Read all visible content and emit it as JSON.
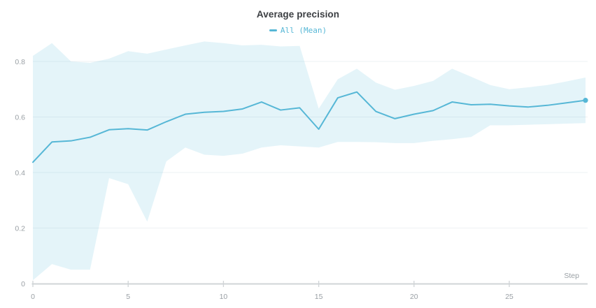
{
  "chart_data": {
    "type": "line",
    "title": "Average precision",
    "xlabel": "Step",
    "ylabel": "",
    "xlim": [
      0,
      29
    ],
    "ylim": [
      0,
      0.8
    ],
    "grid": "horizontal",
    "legend_position": "top-center",
    "x_ticks": [
      0,
      5,
      10,
      15,
      20,
      25
    ],
    "x_tick_labels": [
      "0",
      "5",
      "10",
      "15",
      "20",
      "25"
    ],
    "y_ticks": [
      0,
      0.2,
      0.4,
      0.6,
      0.8
    ],
    "y_tick_labels": [
      "0",
      "0.2",
      "0.4",
      "0.6",
      "0.8"
    ],
    "x": [
      0,
      1,
      2,
      3,
      4,
      5,
      6,
      7,
      8,
      9,
      10,
      11,
      12,
      13,
      14,
      15,
      16,
      17,
      18,
      19,
      20,
      21,
      22,
      23,
      24,
      25,
      26,
      27,
      28,
      29
    ],
    "series": [
      {
        "name": "All (Mean)",
        "kind": "line",
        "values": [
          0.437,
          0.51,
          0.514,
          0.527,
          0.554,
          0.558,
          0.553,
          0.583,
          0.61,
          0.617,
          0.62,
          0.629,
          0.654,
          0.625,
          0.633,
          0.556,
          0.669,
          0.69,
          0.62,
          0.594,
          0.61,
          0.623,
          0.654,
          0.644,
          0.646,
          0.64,
          0.636,
          0.642,
          0.651,
          0.66
        ],
        "end_marker": true
      },
      {
        "name": "All (min/max band)",
        "kind": "band",
        "upper": [
          0.82,
          0.866,
          0.8,
          0.795,
          0.81,
          0.837,
          0.828,
          0.843,
          0.858,
          0.872,
          0.866,
          0.858,
          0.86,
          0.854,
          0.856,
          0.63,
          0.736,
          0.774,
          0.724,
          0.698,
          0.712,
          0.73,
          0.774,
          0.745,
          0.715,
          0.7,
          0.707,
          0.715,
          0.728,
          0.742
        ],
        "lower": [
          0.012,
          0.07,
          0.05,
          0.05,
          0.38,
          0.358,
          0.223,
          0.44,
          0.49,
          0.464,
          0.46,
          0.468,
          0.49,
          0.498,
          0.494,
          0.49,
          0.51,
          0.51,
          0.509,
          0.506,
          0.506,
          0.514,
          0.52,
          0.528,
          0.57,
          0.57,
          0.572,
          0.574,
          0.576,
          0.578
        ]
      }
    ],
    "colors": {
      "line": "#56b7d6",
      "band_fill": "rgba(86,183,214,0.155)",
      "grid": "#eef1f3",
      "axis": "#d0d4d7",
      "tick_label": "#9aa0a5",
      "title": "#3b3e42"
    }
  }
}
